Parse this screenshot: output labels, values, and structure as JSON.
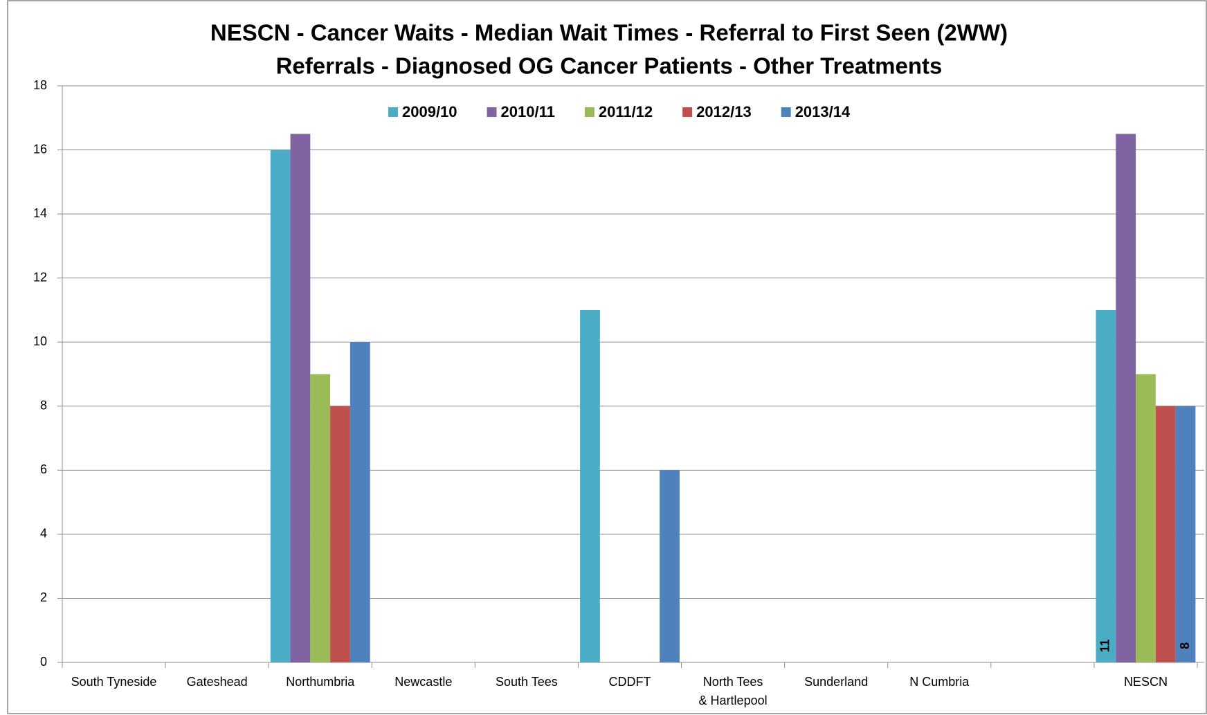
{
  "chart_data": {
    "type": "bar",
    "title": "NESCN - Cancer Waits - Median Wait Times - Referral to First Seen (2WW)",
    "subtitle": "Referrals  - Diagnosed OG Cancer Patients - Other Treatments",
    "categories": [
      "South Tyneside",
      "Gateshead",
      "Northumbria",
      "Newcastle",
      "South Tees",
      "CDDFT",
      "North Tees & Hartlepool",
      "Sunderland",
      "N Cumbria",
      null,
      "NESCN"
    ],
    "series": [
      {
        "name": "2009/10",
        "color": "#4bacc6",
        "values": [
          null,
          null,
          16,
          null,
          null,
          11,
          null,
          null,
          null,
          null,
          11
        ]
      },
      {
        "name": "2010/11",
        "color": "#8064a2",
        "values": [
          null,
          null,
          16.5,
          null,
          null,
          null,
          null,
          null,
          null,
          null,
          16.5
        ]
      },
      {
        "name": "2011/12",
        "color": "#9bbb59",
        "values": [
          null,
          null,
          9,
          null,
          null,
          null,
          null,
          null,
          null,
          null,
          9
        ]
      },
      {
        "name": "2012/13",
        "color": "#c0504d",
        "values": [
          null,
          null,
          8,
          null,
          null,
          null,
          null,
          null,
          null,
          null,
          8
        ]
      },
      {
        "name": "2013/14",
        "color": "#4f81bd",
        "values": [
          null,
          null,
          10,
          null,
          null,
          6,
          null,
          null,
          null,
          null,
          8
        ]
      }
    ],
    "ylim": [
      0,
      18
    ],
    "yticks": [
      0,
      2,
      4,
      6,
      8,
      10,
      12,
      14,
      16,
      18
    ],
    "grid": true,
    "legend": "top"
  }
}
